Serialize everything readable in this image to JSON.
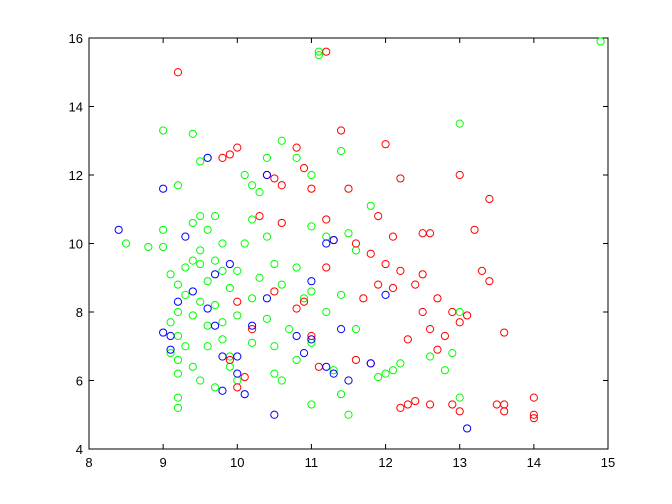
{
  "chart_data": {
    "type": "scatter",
    "xlim": [
      8,
      15
    ],
    "xticks": [
      8,
      9,
      10,
      11,
      12,
      13,
      14,
      15
    ],
    "ylim": [
      4,
      16
    ],
    "yticks": [
      4,
      6,
      8,
      10,
      12,
      14,
      16
    ],
    "series": [
      {
        "color": "#00ff00",
        "x": [
          9,
          9.4,
          9.2,
          9.5,
          9.6,
          9,
          9,
          8.8,
          8.5,
          9.1,
          9.2,
          9.3,
          9.2,
          9.1,
          9.2,
          9.3,
          9.2,
          9.2,
          9.2,
          9.2,
          9.4,
          9.5,
          9.4,
          9.5,
          9.6,
          9.5,
          9.7,
          9.8,
          9.9,
          9.7,
          9.6,
          9.8,
          9.9,
          10,
          10,
          10.1,
          10.2,
          10.2,
          10.1,
          10.4,
          10.3,
          10.4,
          10.5,
          10.6,
          10.4,
          10.5,
          10.5,
          10.6,
          10.8,
          10.7,
          10.9,
          10.8,
          10.6,
          10.8,
          11,
          11.1,
          11.1,
          11,
          11.2,
          11,
          11.2,
          11,
          11.3,
          11,
          11.4,
          11.5,
          11.4,
          11.5,
          11.6,
          11.4,
          11.6,
          11.8,
          11.9,
          12,
          12.1,
          12.2,
          12.6,
          12.8,
          12.9,
          13,
          13,
          13,
          14.9,
          9.4,
          9.5,
          9.6,
          9.8,
          9.3,
          9.4,
          10.2,
          10.3,
          9.9,
          9.7,
          10,
          10.2,
          9.1,
          9.6,
          9.5,
          9.8,
          9.7
        ],
        "values": [
          13.3,
          13.2,
          11.7,
          12.4,
          12.5,
          10.4,
          9.9,
          9.9,
          10,
          9.1,
          8.8,
          8.5,
          8,
          7.7,
          7.3,
          7,
          6.6,
          6.2,
          5.5,
          5.2,
          6.4,
          6,
          9.5,
          9.8,
          10.4,
          10.8,
          10.8,
          9.2,
          8.7,
          8.2,
          7.6,
          7.2,
          6.7,
          7.9,
          9.2,
          10,
          10.7,
          11.7,
          12,
          12.5,
          11.5,
          10.2,
          9.4,
          8.8,
          7.8,
          7,
          6.2,
          6,
          6.6,
          7.5,
          8.4,
          9.3,
          13,
          12.5,
          12,
          15.6,
          15.5,
          10.5,
          10.2,
          8.6,
          8,
          7.1,
          6.3,
          5.3,
          5.6,
          5,
          12.7,
          10.3,
          9.8,
          8.5,
          7.5,
          11.1,
          6.1,
          6.2,
          6.3,
          6.5,
          6.7,
          6.3,
          6.8,
          5.5,
          8,
          13.5,
          15.9,
          7.9,
          8.3,
          8.9,
          7.7,
          9.3,
          10.6,
          8.4,
          9,
          6.4,
          5.8,
          6,
          7.1,
          6.8,
          7,
          9.4,
          10,
          9.5
        ]
      },
      {
        "color": "#ff0000",
        "x": [
          9.2,
          11.2,
          9.8,
          9.9,
          10,
          10.4,
          10.5,
          10.6,
          10.8,
          10.9,
          11,
          11.4,
          11.5,
          11.3,
          11.6,
          11.8,
          11.9,
          12,
          12.2,
          12.1,
          12,
          11.9,
          12.1,
          12.2,
          12.4,
          12.5,
          12.6,
          12.5,
          12.7,
          12.5,
          12.6,
          12.8,
          12.7,
          12.9,
          13,
          13.1,
          13,
          13.3,
          13.4,
          13.4,
          13.2,
          13.6,
          13.5,
          13.6,
          14,
          14,
          14,
          12.9,
          13,
          12.3,
          12.2,
          12.6,
          12.4,
          11.8,
          11.6,
          11.1,
          11,
          10.8,
          10.9,
          11.2,
          10.5,
          10.2,
          10,
          10.1,
          10,
          9.9,
          10.3,
          10.6,
          11.2,
          11.7,
          12.3,
          13.6
        ],
        "values": [
          15,
          15.6,
          12.5,
          12.6,
          12.8,
          12,
          11.9,
          11.7,
          12.8,
          12.2,
          11.6,
          13.3,
          11.6,
          10.1,
          10,
          9.7,
          10.8,
          12.9,
          11.9,
          10.2,
          9.4,
          8.8,
          8.7,
          9.2,
          8.8,
          10.3,
          10.3,
          9.1,
          8.4,
          8,
          7.5,
          7.3,
          6.9,
          8,
          7.7,
          7.9,
          12,
          9.2,
          8.9,
          11.3,
          10.4,
          7.4,
          5.3,
          5.1,
          5.5,
          5,
          4.9,
          5.3,
          5.1,
          5.3,
          5.2,
          5.3,
          5.4,
          6.5,
          6.6,
          6.4,
          7.3,
          8.1,
          8.3,
          9.3,
          8.6,
          7.5,
          8.3,
          6.1,
          5.8,
          6.6,
          10.8,
          10.6,
          10.7,
          8.4,
          7.2,
          5.3
        ]
      },
      {
        "color": "#0000ff",
        "x": [
          8.4,
          9,
          9,
          9.1,
          9.1,
          9.2,
          9.3,
          9.4,
          9.6,
          9.6,
          9.7,
          9.7,
          9.8,
          9.8,
          10,
          10,
          10.1,
          10.2,
          10.4,
          10.4,
          10.5,
          10.8,
          10.9,
          11,
          11,
          11.2,
          11.3,
          11.2,
          11.3,
          11.5,
          11.4,
          11.8,
          12,
          13.1,
          9.9
        ],
        "values": [
          10.4,
          11.6,
          7.4,
          7.3,
          6.9,
          8.3,
          10.2,
          8.6,
          12.5,
          8.1,
          9.1,
          7.6,
          6.7,
          5.7,
          6.7,
          6.2,
          5.6,
          7.6,
          12,
          8.4,
          5,
          7.3,
          6.8,
          7.2,
          8.9,
          10,
          10.1,
          6.4,
          6.2,
          6,
          7.5,
          6.5,
          8.5,
          4.6,
          9.4
        ]
      }
    ]
  }
}
